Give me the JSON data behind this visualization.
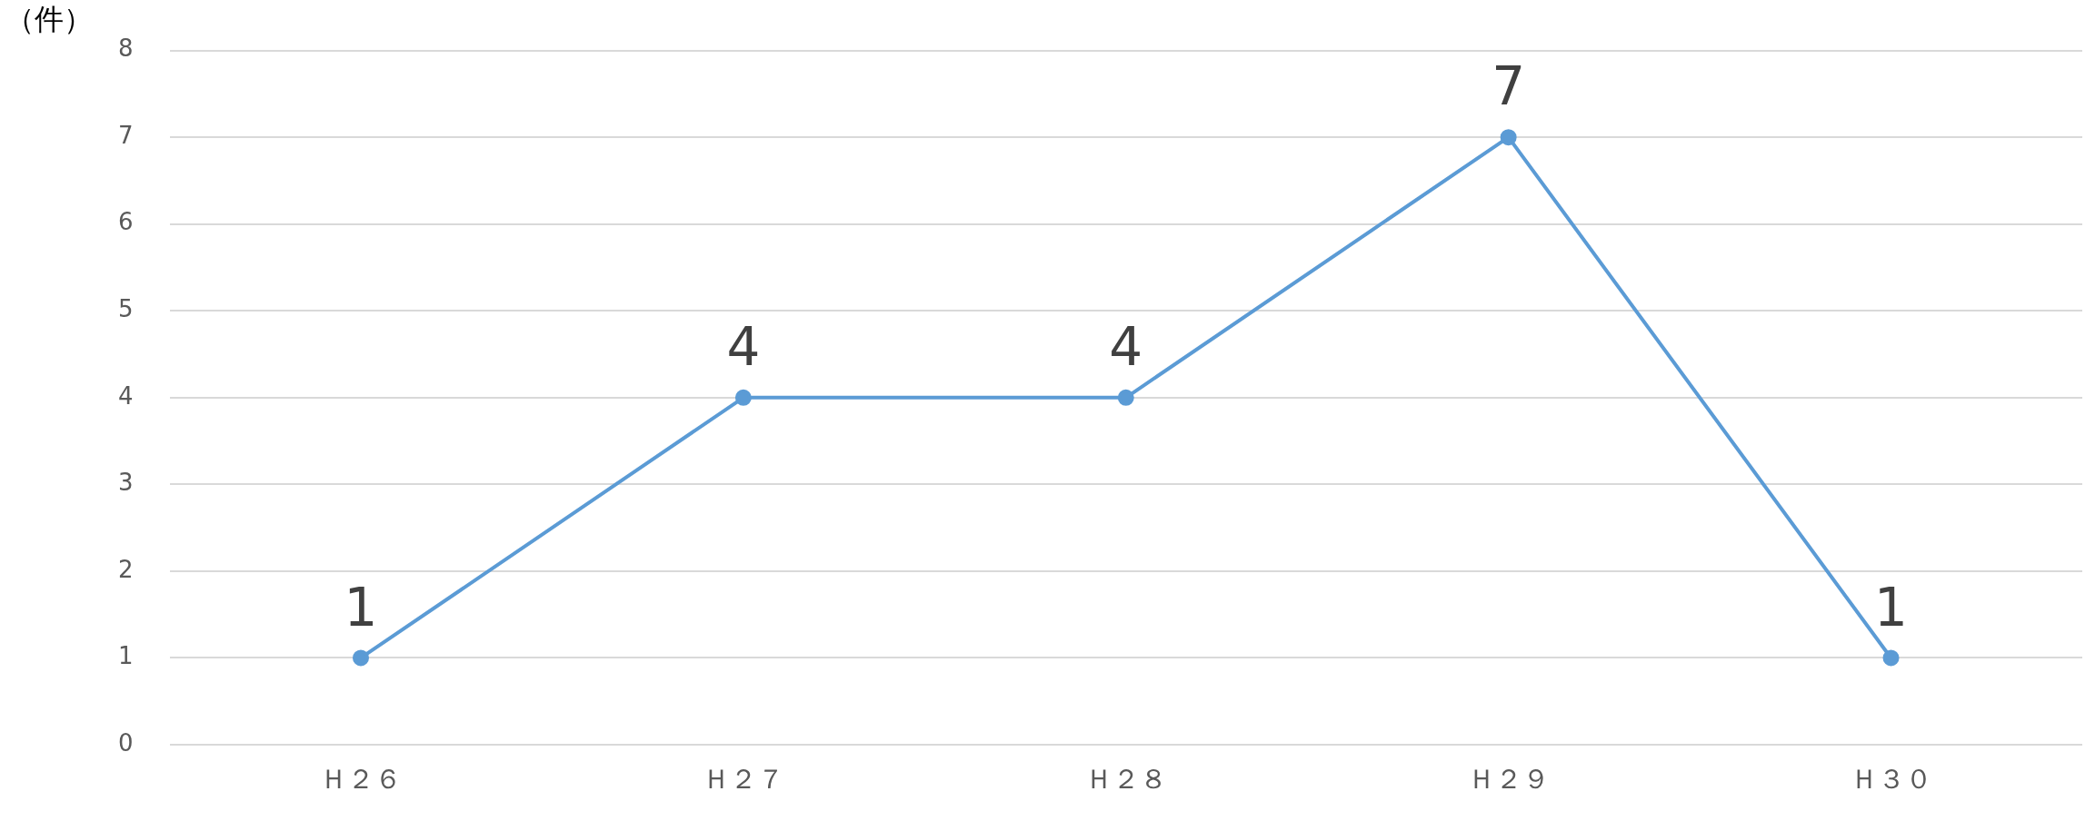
{
  "chart_data": {
    "type": "line",
    "ylabel": "（件）",
    "categories": [
      "Ｈ２６",
      "Ｈ２７",
      "Ｈ２８",
      "Ｈ２９",
      "Ｈ３０"
    ],
    "series": [
      {
        "color": "#5b9bd5",
        "values": [
          1,
          4,
          4,
          7,
          1
        ]
      }
    ],
    "ylim": [
      0,
      8
    ],
    "yticks": [
      0,
      1,
      2,
      3,
      4,
      5,
      6,
      7,
      8
    ],
    "grid": "y",
    "legend": false,
    "marker": "circle",
    "line_style": "solid",
    "data_labels": true
  }
}
